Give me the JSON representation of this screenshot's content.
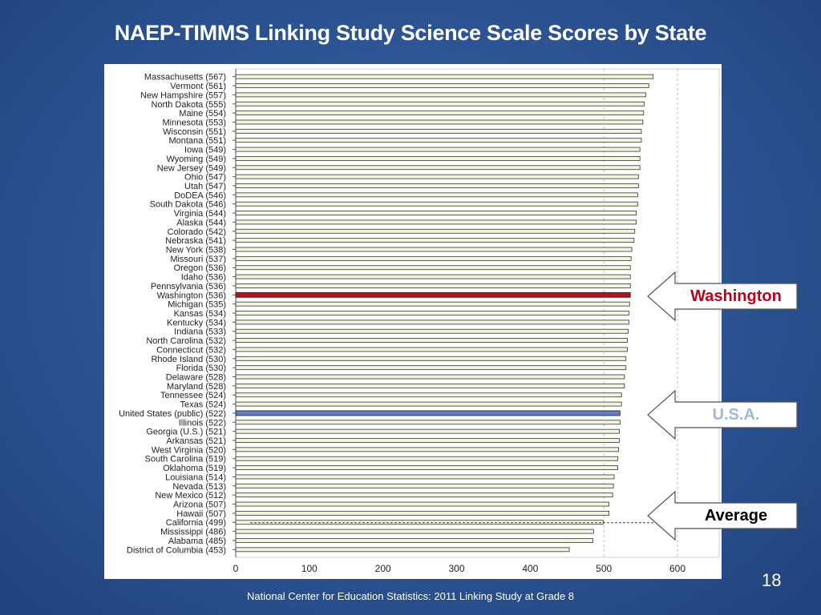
{
  "slide": {
    "title": "NAEP-TIMMS Linking Study Science Scale Scores by State",
    "page_number": "18",
    "source": "National Center for Education Statistics: 2011 Linking Study at Grade 8"
  },
  "callouts": {
    "washington": {
      "label": "Washington",
      "color": "#c0001a"
    },
    "usa": {
      "label": "U.S.A.",
      "color": "#9cb8db"
    },
    "average": {
      "label": "Average",
      "color": "#000000"
    }
  },
  "chart_data": {
    "type": "bar",
    "orientation": "horizontal",
    "xlim": [
      0,
      600
    ],
    "xticks": [
      "0",
      "100",
      "200",
      "300",
      "400",
      "500",
      "600"
    ],
    "grid": "dashed vertical at 500 and 600",
    "average_value": 500,
    "categories": [
      "Massachusetts (567)",
      "Vermont (561)",
      "New Hampshire (557)",
      "North Dakota (555)",
      "Maine (554)",
      "Minnesota (553)",
      "Wisconsin (551)",
      "Montana (551)",
      "Iowa (549)",
      "Wyoming (549)",
      "New Jersey (549)",
      "Ohio (547)",
      "Utah (547)",
      "DoDEA (546)",
      "South Dakota (546)",
      "Virginia (544)",
      "Alaska (544)",
      "Colorado (542)",
      "Nebraska (541)",
      "New York (538)",
      "Missouri (537)",
      "Oregon (536)",
      "Idaho (536)",
      "Pennsylvania (536)",
      "Washington (536)",
      "Michigan (535)",
      "Kansas (534)",
      "Kentucky (534)",
      "Indiana (533)",
      "North Carolina (532)",
      "Connecticut (532)",
      "Rhode Island (530)",
      "Florida (530)",
      "Delaware (528)",
      "Maryland (528)",
      "Tennessee (524)",
      "Texas (524)",
      "United States (public) (522)",
      "Illinois (522)",
      "Georgia (U.S.) (521)",
      "Arkansas (521)",
      "West Virginia (520)",
      "South Carolina (519)",
      "Oklahoma (519)",
      "Louisiana (514)",
      "Nevada (513)",
      "New Mexico (512)",
      "Arizona (507)",
      "Hawaii (507)",
      "California (499)",
      "Mississippi (486)",
      "Alabama (485)",
      "District of Columbia (453)"
    ],
    "values": [
      567,
      561,
      557,
      555,
      554,
      553,
      551,
      551,
      549,
      549,
      549,
      547,
      547,
      546,
      546,
      544,
      544,
      542,
      541,
      538,
      537,
      536,
      536,
      536,
      536,
      535,
      534,
      534,
      533,
      532,
      532,
      530,
      530,
      528,
      528,
      524,
      524,
      522,
      522,
      521,
      521,
      520,
      519,
      519,
      514,
      513,
      512,
      507,
      507,
      499,
      486,
      485,
      453
    ],
    "highlight": {
      "Washington (536)": "#b3141c",
      "United States (public) (522)": "#5b7fc4"
    },
    "bar_color": "#f0f5dc",
    "bar_edge": "#333333"
  }
}
